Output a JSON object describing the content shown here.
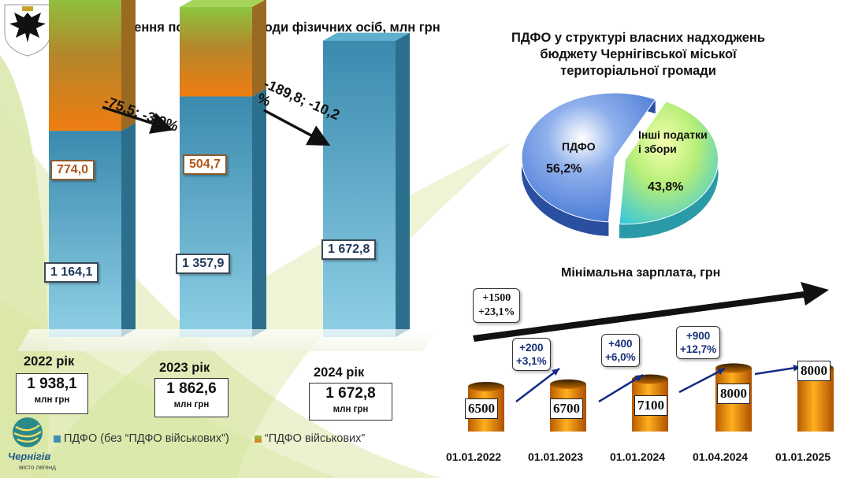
{
  "colors": {
    "civilian": "#3f8fb0",
    "military": "#e07b1a",
    "green_top": "#8cc63f",
    "orange_bar": "#f08a10",
    "arrow_blue": "#142a85"
  },
  "chart_data": [
    {
      "type": "bar",
      "stacked": true,
      "title": "Надходження податку на доходи фізичних осіб, млн грн",
      "categories": [
        "2022 рік",
        "2023 рік",
        "2024 рік"
      ],
      "series": [
        {
          "name": "ПДФО (без “ПДФО військових”)",
          "values": [
            1164.1,
            1357.9,
            1672.8
          ],
          "labels": [
            "1 164,1",
            "1 357,9",
            "1 672,8"
          ]
        },
        {
          "name": "“ПДФО військових”",
          "values": [
            774.0,
            504.7,
            0
          ],
          "labels": [
            "774,0",
            "504,7",
            ""
          ]
        }
      ],
      "totals": [
        {
          "year": "2022 рік",
          "value": "1 938,1",
          "unit": "млн грн"
        },
        {
          "year": "2023 рік",
          "value": "1 862,6",
          "unit": "млн грн"
        },
        {
          "year": "2024 рік",
          "value": "1 672,8",
          "unit": "млн грн"
        }
      ],
      "changes": [
        "-75,5; -3,9%",
        "-189,8; -10,2 %"
      ]
    },
    {
      "type": "pie",
      "title": "ПДФО у структурі власних надходжень бюджету Чернігівської міської територіальної громади",
      "slices": [
        {
          "label": "ПДФО",
          "value": 56.2,
          "value_label": "56,2%",
          "color": "#3d6fd1"
        },
        {
          "label": "Інші податки і збори",
          "value": 43.8,
          "value_label": "43,8%",
          "color": "#3cc8d8"
        }
      ]
    },
    {
      "type": "bar",
      "title": "Мінімальна зарплата, грн",
      "categories": [
        "01.01.2022",
        "01.01.2023",
        "01.01.2024",
        "01.04.2024",
        "01.01.2025"
      ],
      "values": [
        6500,
        6700,
        7100,
        8000,
        8000
      ],
      "value_labels": [
        "6500",
        "6700",
        "7100",
        "8000",
        "8000"
      ],
      "overall_increase": [
        "+1500",
        "+23,1%"
      ],
      "increases": [
        [
          "+200",
          "+3,1%"
        ],
        [
          "+400",
          "+6,0%"
        ],
        [
          "+900",
          "+12,7%"
        ]
      ]
    }
  ],
  "city": {
    "name": "Чернігів",
    "tagline": "місто легенд"
  }
}
